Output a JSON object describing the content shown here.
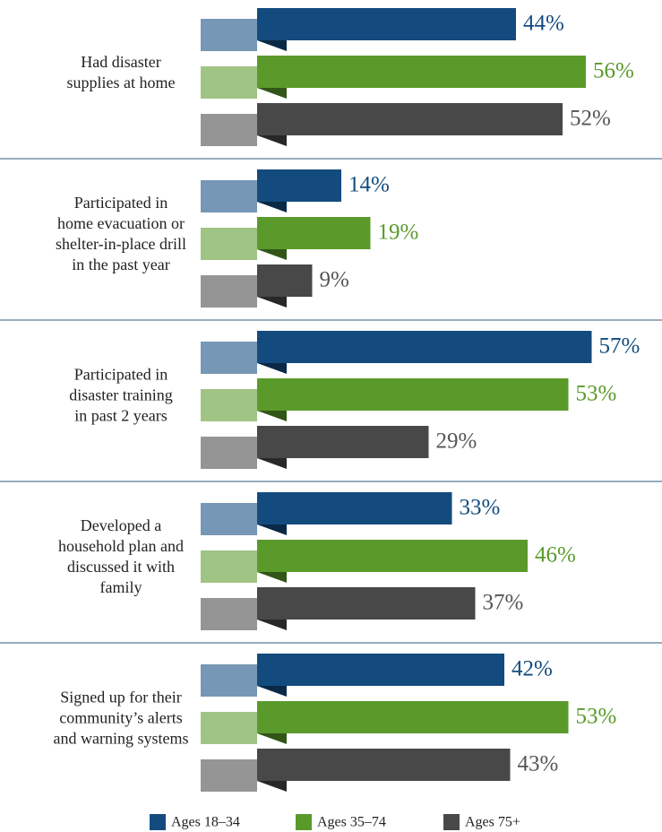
{
  "chart_data": {
    "type": "bar",
    "orientation": "horizontal",
    "categories": [
      "Had disaster\nsupplies at home",
      "Participated in\nhome evacuation or\nshelter-in-place drill\nin the past year",
      "Participated in\ndisaster training\nin past 2 years",
      "Developed a\nhousehold plan and\ndiscussed it with\nfamily",
      "Signed up for their\ncommunity’s alerts\nand warning systems"
    ],
    "series": [
      {
        "name": "Ages 18–34",
        "color": "#134b7f",
        "values": [
          44,
          14,
          57,
          33,
          42
        ],
        "value_labels": [
          "44%",
          "14%",
          "57%",
          "33%",
          "42%"
        ]
      },
      {
        "name": "Ages 35–74",
        "color": "#5a9a2b",
        "values": [
          56,
          19,
          53,
          46,
          53
        ],
        "value_labels": [
          "56%",
          "19%",
          "53%",
          "46%",
          "53%"
        ]
      },
      {
        "name": "Ages 75+",
        "color": "#484848",
        "values": [
          52,
          9,
          29,
          37,
          43
        ],
        "value_labels": [
          "52%",
          "9%",
          "29%",
          "37%",
          "43%"
        ]
      }
    ]
  }
}
